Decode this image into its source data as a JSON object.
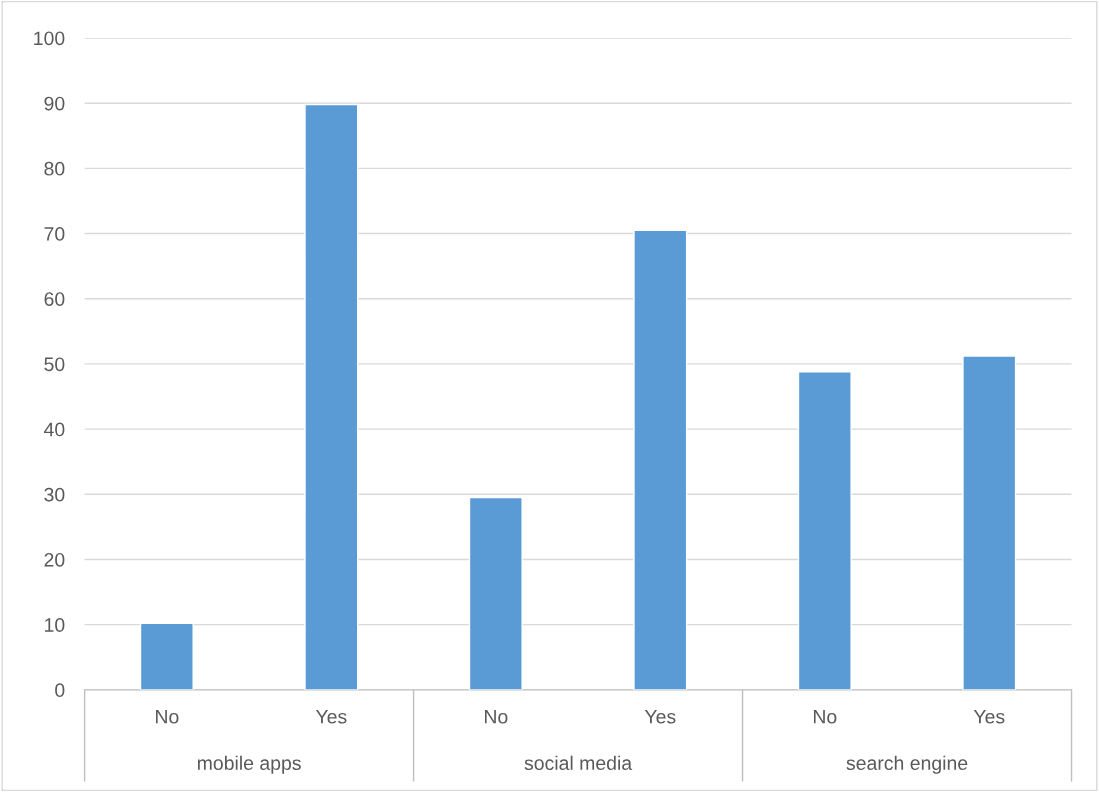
{
  "chart_data": {
    "type": "bar",
    "categories": [
      "No",
      "Yes",
      "No",
      "Yes",
      "No",
      "Yes"
    ],
    "values": [
      10.2,
      89.8,
      29.5,
      70.5,
      48.8,
      51.2
    ],
    "color": "#5b9bd5",
    "ylim": [
      0,
      100
    ],
    "yticks": [
      0,
      10,
      20,
      30,
      40,
      50,
      60,
      70,
      80,
      90,
      100
    ],
    "grid": "y",
    "legend": false,
    "annotations": [
      "mobile apps",
      "social media",
      "search engine"
    ]
  }
}
